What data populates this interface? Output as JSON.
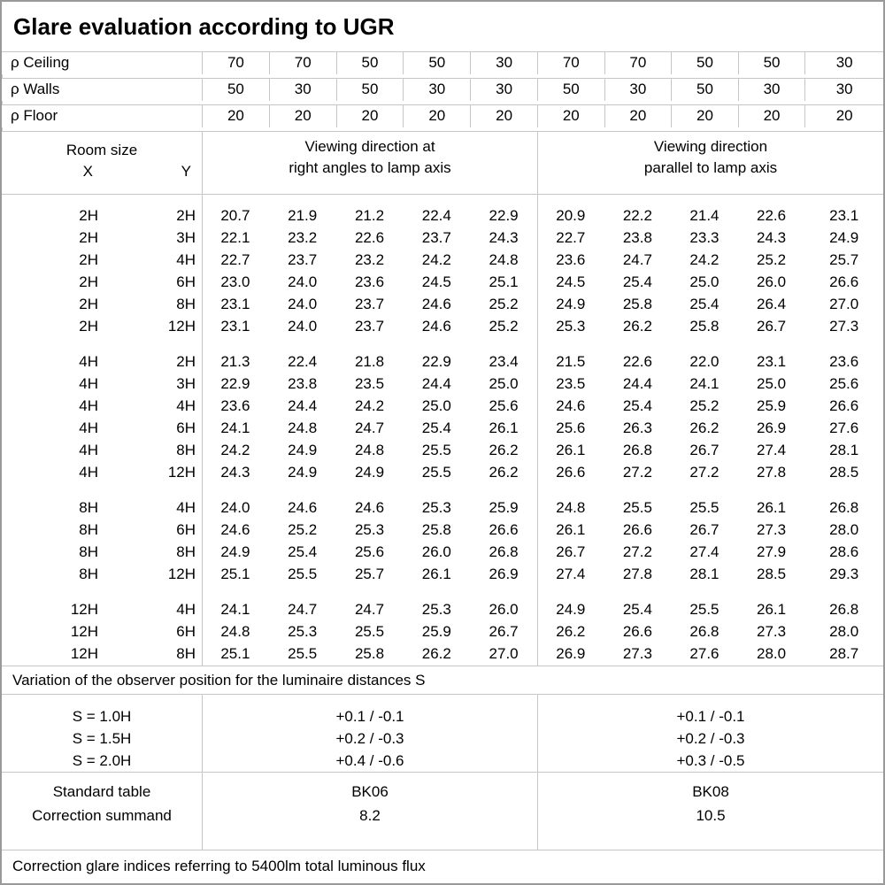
{
  "title": "Glare evaluation according to UGR",
  "header": {
    "rho_rows": [
      {
        "label": "ρ Ceiling",
        "values": [
          "70",
          "70",
          "50",
          "50",
          "30",
          "70",
          "70",
          "50",
          "50",
          "30"
        ]
      },
      {
        "label": "ρ Walls",
        "values": [
          "50",
          "30",
          "50",
          "30",
          "30",
          "50",
          "30",
          "50",
          "30",
          "30"
        ]
      },
      {
        "label": "ρ Floor",
        "values": [
          "20",
          "20",
          "20",
          "20",
          "20",
          "20",
          "20",
          "20",
          "20",
          "20"
        ]
      }
    ],
    "room_size_label": "Room size",
    "x_label": "X",
    "y_label": "Y",
    "section_right_angles": "Viewing direction at\nright angles to lamp axis",
    "section_parallel": "Viewing direction\nparallel to lamp axis"
  },
  "table": {
    "groups": [
      {
        "rows": [
          {
            "x": "2H",
            "y": "2H",
            "right_angle": [
              "20.7",
              "21.9",
              "21.2",
              "22.4",
              "22.9"
            ],
            "parallel": [
              "20.9",
              "22.2",
              "21.4",
              "22.6",
              "23.1"
            ]
          },
          {
            "x": "2H",
            "y": "3H",
            "right_angle": [
              "22.1",
              "23.2",
              "22.6",
              "23.7",
              "24.3"
            ],
            "parallel": [
              "22.7",
              "23.8",
              "23.3",
              "24.3",
              "24.9"
            ]
          },
          {
            "x": "2H",
            "y": "4H",
            "right_angle": [
              "22.7",
              "23.7",
              "23.2",
              "24.2",
              "24.8"
            ],
            "parallel": [
              "23.6",
              "24.7",
              "24.2",
              "25.2",
              "25.7"
            ]
          },
          {
            "x": "2H",
            "y": "6H",
            "right_angle": [
              "23.0",
              "24.0",
              "23.6",
              "24.5",
              "25.1"
            ],
            "parallel": [
              "24.5",
              "25.4",
              "25.0",
              "26.0",
              "26.6"
            ]
          },
          {
            "x": "2H",
            "y": "8H",
            "right_angle": [
              "23.1",
              "24.0",
              "23.7",
              "24.6",
              "25.2"
            ],
            "parallel": [
              "24.9",
              "25.8",
              "25.4",
              "26.4",
              "27.0"
            ]
          },
          {
            "x": "2H",
            "y": "12H",
            "right_angle": [
              "23.1",
              "24.0",
              "23.7",
              "24.6",
              "25.2"
            ],
            "parallel": [
              "25.3",
              "26.2",
              "25.8",
              "26.7",
              "27.3"
            ]
          }
        ]
      },
      {
        "rows": [
          {
            "x": "4H",
            "y": "2H",
            "right_angle": [
              "21.3",
              "22.4",
              "21.8",
              "22.9",
              "23.4"
            ],
            "parallel": [
              "21.5",
              "22.6",
              "22.0",
              "23.1",
              "23.6"
            ]
          },
          {
            "x": "4H",
            "y": "3H",
            "right_angle": [
              "22.9",
              "23.8",
              "23.5",
              "24.4",
              "25.0"
            ],
            "parallel": [
              "23.5",
              "24.4",
              "24.1",
              "25.0",
              "25.6"
            ]
          },
          {
            "x": "4H",
            "y": "4H",
            "right_angle": [
              "23.6",
              "24.4",
              "24.2",
              "25.0",
              "25.6"
            ],
            "parallel": [
              "24.6",
              "25.4",
              "25.2",
              "25.9",
              "26.6"
            ]
          },
          {
            "x": "4H",
            "y": "6H",
            "right_angle": [
              "24.1",
              "24.8",
              "24.7",
              "25.4",
              "26.1"
            ],
            "parallel": [
              "25.6",
              "26.3",
              "26.2",
              "26.9",
              "27.6"
            ]
          },
          {
            "x": "4H",
            "y": "8H",
            "right_angle": [
              "24.2",
              "24.9",
              "24.8",
              "25.5",
              "26.2"
            ],
            "parallel": [
              "26.1",
              "26.8",
              "26.7",
              "27.4",
              "28.1"
            ]
          },
          {
            "x": "4H",
            "y": "12H",
            "right_angle": [
              "24.3",
              "24.9",
              "24.9",
              "25.5",
              "26.2"
            ],
            "parallel": [
              "26.6",
              "27.2",
              "27.2",
              "27.8",
              "28.5"
            ]
          }
        ]
      },
      {
        "rows": [
          {
            "x": "8H",
            "y": "4H",
            "right_angle": [
              "24.0",
              "24.6",
              "24.6",
              "25.3",
              "25.9"
            ],
            "parallel": [
              "24.8",
              "25.5",
              "25.5",
              "26.1",
              "26.8"
            ]
          },
          {
            "x": "8H",
            "y": "6H",
            "right_angle": [
              "24.6",
              "25.2",
              "25.3",
              "25.8",
              "26.6"
            ],
            "parallel": [
              "26.1",
              "26.6",
              "26.7",
              "27.3",
              "28.0"
            ]
          },
          {
            "x": "8H",
            "y": "8H",
            "right_angle": [
              "24.9",
              "25.4",
              "25.6",
              "26.0",
              "26.8"
            ],
            "parallel": [
              "26.7",
              "27.2",
              "27.4",
              "27.9",
              "28.6"
            ]
          },
          {
            "x": "8H",
            "y": "12H",
            "right_angle": [
              "25.1",
              "25.5",
              "25.7",
              "26.1",
              "26.9"
            ],
            "parallel": [
              "27.4",
              "27.8",
              "28.1",
              "28.5",
              "29.3"
            ]
          }
        ]
      },
      {
        "rows": [
          {
            "x": "12H",
            "y": "4H",
            "right_angle": [
              "24.1",
              "24.7",
              "24.7",
              "25.3",
              "26.0"
            ],
            "parallel": [
              "24.9",
              "25.4",
              "25.5",
              "26.1",
              "26.8"
            ]
          },
          {
            "x": "12H",
            "y": "6H",
            "right_angle": [
              "24.8",
              "25.3",
              "25.5",
              "25.9",
              "26.7"
            ],
            "parallel": [
              "26.2",
              "26.6",
              "26.8",
              "27.3",
              "28.0"
            ]
          },
          {
            "x": "12H",
            "y": "8H",
            "right_angle": [
              "25.1",
              "25.5",
              "25.8",
              "26.2",
              "27.0"
            ],
            "parallel": [
              "26.9",
              "27.3",
              "27.6",
              "28.0",
              "28.7"
            ]
          }
        ]
      }
    ]
  },
  "variation_note": "Variation of the observer position for the luminaire distances S",
  "s_block": {
    "labels": [
      "S = 1.0H",
      "S = 1.5H",
      "S = 2.0H"
    ],
    "right_angle": [
      "+0.1 / -0.1",
      "+0.2 / -0.3",
      "+0.4 / -0.6"
    ],
    "parallel": [
      "+0.1 / -0.1",
      "+0.2 / -0.3",
      "+0.3 / -0.5"
    ]
  },
  "summary": {
    "row_labels": [
      "Standard table",
      "Correction summand"
    ],
    "right_angle": [
      "BK06",
      "8.2"
    ],
    "parallel": [
      "BK08",
      "10.5"
    ]
  },
  "footer_note": "Correction glare indices referring to 5400lm total luminous flux"
}
